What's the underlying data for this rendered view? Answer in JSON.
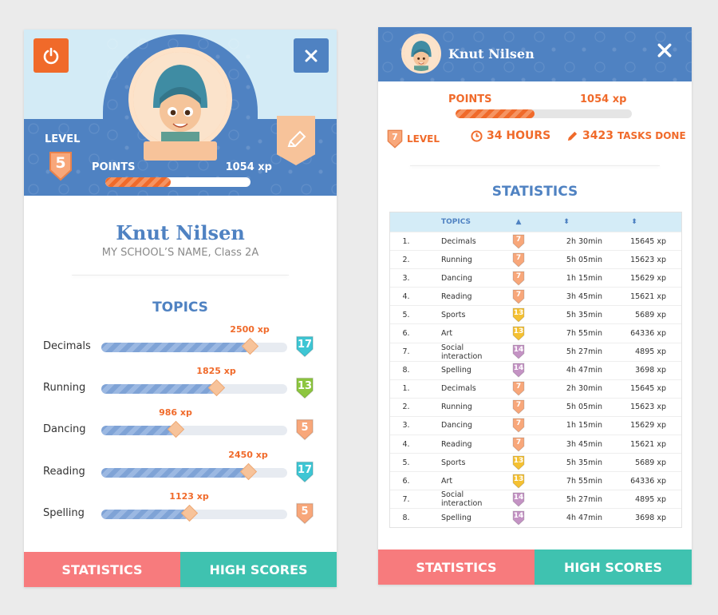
{
  "profile": {
    "name": "Knut Nilsen",
    "school": "MY SCHOOL’S NAME, Class 2A",
    "level_label": "LEVEL",
    "level": "5",
    "points_label": "POINTS",
    "points_xp": "1054 xp",
    "points_fill": 0.45
  },
  "topics": {
    "title": "TOPICS",
    "items": [
      {
        "name": "Decimals",
        "xp": "2500 xp",
        "fill": 0.8,
        "badge": "17",
        "badge_color": "#3ec6d4"
      },
      {
        "name": "Running",
        "xp": "1825 xp",
        "fill": 0.62,
        "badge": "13",
        "badge_color": "#8dc63f"
      },
      {
        "name": "Dancing",
        "xp": "986 xp",
        "fill": 0.4,
        "badge": "5",
        "badge_color": "#f8a77a"
      },
      {
        "name": "Reading",
        "xp": "2450 xp",
        "fill": 0.79,
        "badge": "17",
        "badge_color": "#3ec6d4"
      },
      {
        "name": "Spelling",
        "xp": "1123 xp",
        "fill": 0.47,
        "badge": "5",
        "badge_color": "#f8a77a"
      }
    ]
  },
  "tabs": {
    "statistics": "STATISTICS",
    "high_scores": "HIGH SCORES"
  },
  "right": {
    "level_text": "LEVEL",
    "level_badge": "7",
    "hours": "34 HOURS",
    "tasks_num": "3423",
    "tasks_label": "TASKS DONE",
    "stats_title": "STATISTICS",
    "table_header_topics": "TOPICS",
    "sort_up": "▲",
    "sort_both": "⬍",
    "rows": [
      {
        "n": "1.",
        "topic": "Decimals",
        "lvl": "7",
        "lvl_color": "#f8a77a",
        "time": "2h 30min",
        "xp": "15645 xp"
      },
      {
        "n": "2.",
        "topic": "Running",
        "lvl": "7",
        "lvl_color": "#f8a77a",
        "time": "5h 05min",
        "xp": "15623 xp"
      },
      {
        "n": "3.",
        "topic": "Dancing",
        "lvl": "7",
        "lvl_color": "#f8a77a",
        "time": "1h 15min",
        "xp": "15629 xp"
      },
      {
        "n": "4.",
        "topic": "Reading",
        "lvl": "7",
        "lvl_color": "#f8a77a",
        "time": "3h 45min",
        "xp": "15621 xp"
      },
      {
        "n": "5.",
        "topic": "Sports",
        "lvl": "13",
        "lvl_color": "#f5c132",
        "time": "5h 35min",
        "xp": "5689 xp"
      },
      {
        "n": "6.",
        "topic": "Art",
        "lvl": "13",
        "lvl_color": "#f5c132",
        "time": "7h 55min",
        "xp": "64336 xp"
      },
      {
        "n": "7.",
        "topic": "Social interaction",
        "lvl": "14",
        "lvl_color": "#c493c4",
        "time": "5h 27min",
        "xp": "4895 xp"
      },
      {
        "n": "8.",
        "topic": "Spelling",
        "lvl": "14",
        "lvl_color": "#c493c4",
        "time": "4h 47min",
        "xp": "3698 xp"
      },
      {
        "n": "1.",
        "topic": "Decimals",
        "lvl": "7",
        "lvl_color": "#f8a77a",
        "time": "2h 30min",
        "xp": "15645 xp"
      },
      {
        "n": "2.",
        "topic": "Running",
        "lvl": "7",
        "lvl_color": "#f8a77a",
        "time": "5h 05min",
        "xp": "15623 xp"
      },
      {
        "n": "3.",
        "topic": "Dancing",
        "lvl": "7",
        "lvl_color": "#f8a77a",
        "time": "1h 15min",
        "xp": "15629 xp"
      },
      {
        "n": "4.",
        "topic": "Reading",
        "lvl": "7",
        "lvl_color": "#f8a77a",
        "time": "3h 45min",
        "xp": "15621 xp"
      },
      {
        "n": "5.",
        "topic": "Sports",
        "lvl": "13",
        "lvl_color": "#f5c132",
        "time": "5h 35min",
        "xp": "5689 xp"
      },
      {
        "n": "6.",
        "topic": "Art",
        "lvl": "13",
        "lvl_color": "#f5c132",
        "time": "7h 55min",
        "xp": "64336 xp"
      },
      {
        "n": "7.",
        "topic": "Social interaction",
        "lvl": "14",
        "lvl_color": "#c493c4",
        "time": "5h 27min",
        "xp": "4895 xp"
      },
      {
        "n": "8.",
        "topic": "Spelling",
        "lvl": "14",
        "lvl_color": "#c493c4",
        "time": "4h 47min",
        "xp": "3698 xp"
      }
    ]
  },
  "colors": {
    "accent_orange": "#f06a2a",
    "accent_blue": "#4f82c2",
    "tab_red": "#f77b7d",
    "tab_teal": "#3fc2b0"
  },
  "icons": {
    "power": "power-icon",
    "close": "close-icon",
    "edit": "pencil-icon",
    "clock": "clock-icon",
    "pencil": "pencil-icon"
  }
}
